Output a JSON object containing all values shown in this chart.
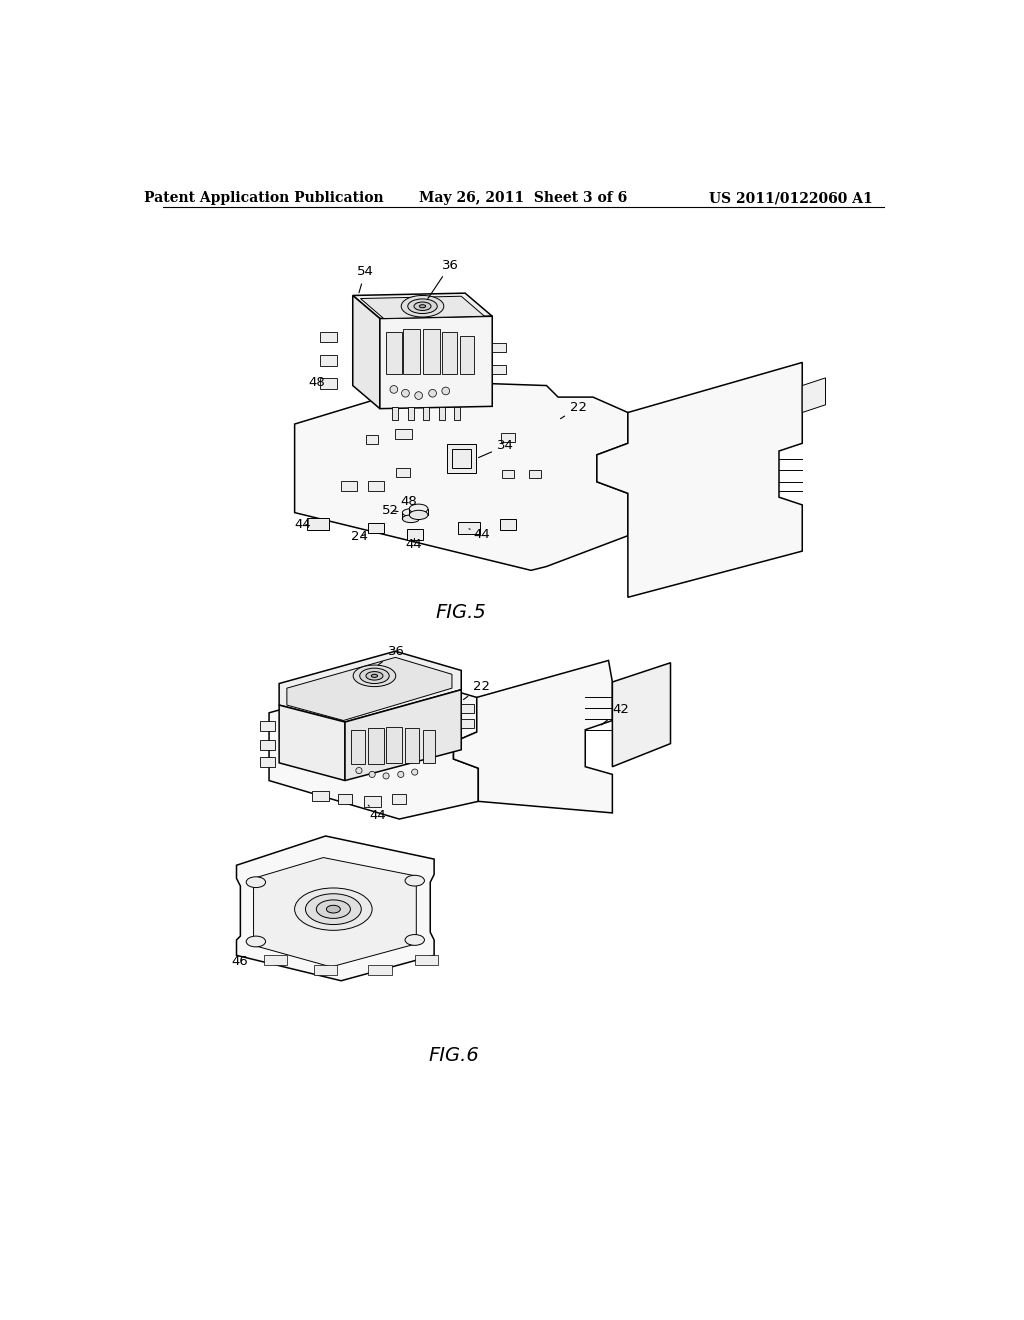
{
  "background_color": "#ffffff",
  "header_left": "Patent Application Publication",
  "header_center": "May 26, 2011  Sheet 3 of 6",
  "header_right": "US 2011/0122060 A1",
  "fig5_label": "FIG.5",
  "fig6_label": "FIG.6",
  "line_color": "#000000",
  "lw": 1.1,
  "lw_thin": 0.7
}
